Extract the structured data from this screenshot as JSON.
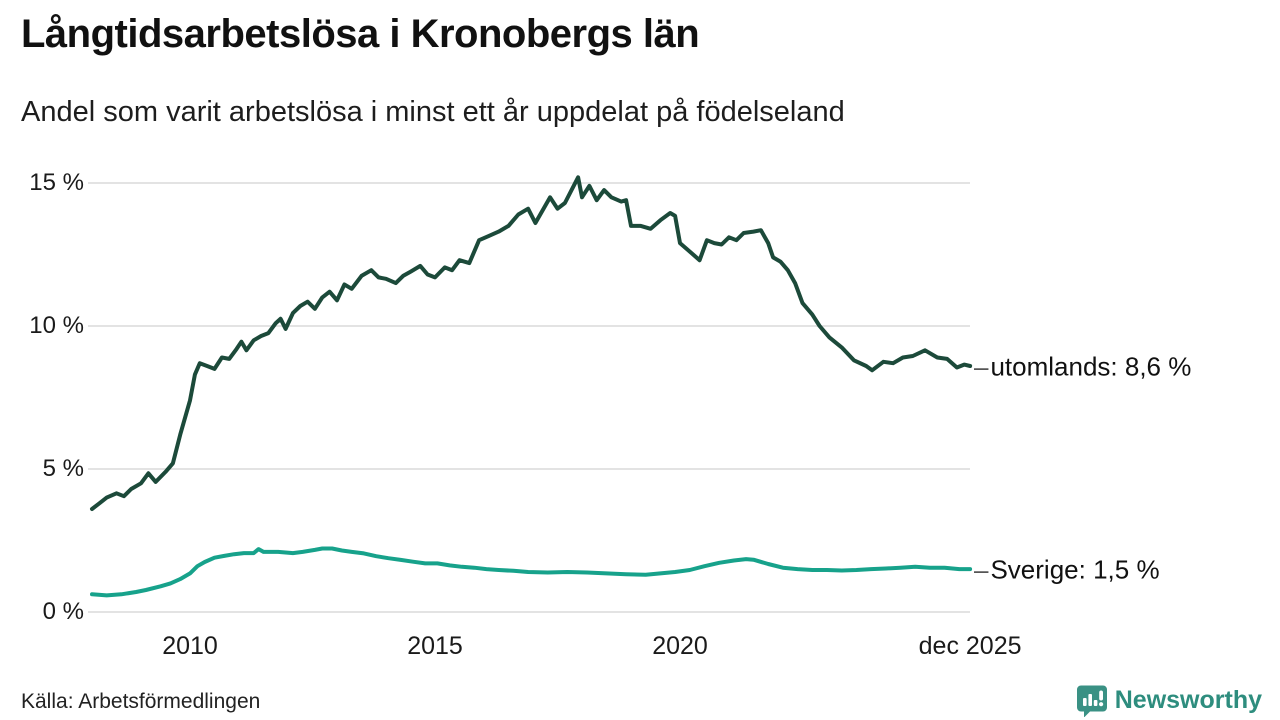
{
  "header": {
    "title": "Långtidsarbetslösa i Kronobergs län",
    "subtitle": "Andel som varit arbetslösa i minst ett år uppdelat på födelseland"
  },
  "footer": {
    "source": "Källa: Arbetsförmedlingen",
    "brand": "Newsworthy",
    "brand_color": "#2e8d7e"
  },
  "chart_data": {
    "type": "line",
    "title": "Långtidsarbetslösa i Kronobergs län",
    "subtitle": "Andel som varit arbetslösa i minst ett år uppdelat på födelseland",
    "unit": "%",
    "grid": true,
    "legend_position": "right-end-labels",
    "gridline_color": "#e3e3e3",
    "connector": "–",
    "x_axis": {
      "range": [
        2008.0,
        2025.92
      ],
      "ticks": [
        {
          "label": "2010",
          "year": 2010
        },
        {
          "label": "2015",
          "year": 2015
        },
        {
          "label": "2020",
          "year": 2020
        },
        {
          "label": "dec 2025",
          "year": 2025.92
        }
      ]
    },
    "y_axis": {
      "range": [
        0,
        15.5
      ],
      "ticks": [
        {
          "label": "0 %",
          "value": 0
        },
        {
          "label": "5 %",
          "value": 5
        },
        {
          "label": "10 %",
          "value": 10
        },
        {
          "label": "15 %",
          "value": 15
        }
      ]
    },
    "series": [
      {
        "name": "utomlands",
        "label": "utomlands: 8,6 %",
        "end_value": 8.6,
        "color": "#1c4a3a",
        "points": [
          [
            2008.0,
            3.6
          ],
          [
            2008.15,
            3.8
          ],
          [
            2008.3,
            4.0
          ],
          [
            2008.5,
            4.15
          ],
          [
            2008.65,
            4.05
          ],
          [
            2008.8,
            4.3
          ],
          [
            2009.0,
            4.5
          ],
          [
            2009.15,
            4.85
          ],
          [
            2009.3,
            4.55
          ],
          [
            2009.5,
            4.9
          ],
          [
            2009.65,
            5.2
          ],
          [
            2009.8,
            6.2
          ],
          [
            2010.0,
            7.4
          ],
          [
            2010.1,
            8.3
          ],
          [
            2010.2,
            8.7
          ],
          [
            2010.35,
            8.6
          ],
          [
            2010.5,
            8.5
          ],
          [
            2010.65,
            8.9
          ],
          [
            2010.8,
            8.85
          ],
          [
            2010.95,
            9.2
          ],
          [
            2011.05,
            9.45
          ],
          [
            2011.15,
            9.15
          ],
          [
            2011.3,
            9.5
          ],
          [
            2011.45,
            9.65
          ],
          [
            2011.6,
            9.75
          ],
          [
            2011.75,
            10.1
          ],
          [
            2011.85,
            10.25
          ],
          [
            2011.95,
            9.9
          ],
          [
            2012.1,
            10.45
          ],
          [
            2012.25,
            10.7
          ],
          [
            2012.4,
            10.85
          ],
          [
            2012.55,
            10.6
          ],
          [
            2012.7,
            11.0
          ],
          [
            2012.85,
            11.2
          ],
          [
            2013.0,
            10.9
          ],
          [
            2013.15,
            11.45
          ],
          [
            2013.3,
            11.3
          ],
          [
            2013.5,
            11.75
          ],
          [
            2013.7,
            11.95
          ],
          [
            2013.85,
            11.7
          ],
          [
            2014.0,
            11.65
          ],
          [
            2014.2,
            11.5
          ],
          [
            2014.35,
            11.75
          ],
          [
            2014.5,
            11.9
          ],
          [
            2014.7,
            12.1
          ],
          [
            2014.85,
            11.8
          ],
          [
            2015.0,
            11.7
          ],
          [
            2015.2,
            12.05
          ],
          [
            2015.35,
            11.95
          ],
          [
            2015.5,
            12.3
          ],
          [
            2015.7,
            12.2
          ],
          [
            2015.9,
            13.0
          ],
          [
            2016.1,
            13.15
          ],
          [
            2016.3,
            13.3
          ],
          [
            2016.5,
            13.5
          ],
          [
            2016.7,
            13.9
          ],
          [
            2016.9,
            14.1
          ],
          [
            2017.05,
            13.6
          ],
          [
            2017.35,
            14.5
          ],
          [
            2017.5,
            14.1
          ],
          [
            2017.65,
            14.3
          ],
          [
            2017.92,
            15.2
          ],
          [
            2018.0,
            14.5
          ],
          [
            2018.15,
            14.9
          ],
          [
            2018.3,
            14.4
          ],
          [
            2018.45,
            14.75
          ],
          [
            2018.6,
            14.5
          ],
          [
            2018.8,
            14.35
          ],
          [
            2018.9,
            14.4
          ],
          [
            2019.0,
            13.5
          ],
          [
            2019.2,
            13.5
          ],
          [
            2019.4,
            13.4
          ],
          [
            2019.6,
            13.7
          ],
          [
            2019.8,
            13.95
          ],
          [
            2019.9,
            13.85
          ],
          [
            2020.0,
            12.9
          ],
          [
            2020.2,
            12.6
          ],
          [
            2020.4,
            12.3
          ],
          [
            2020.55,
            13.0
          ],
          [
            2020.7,
            12.9
          ],
          [
            2020.85,
            12.85
          ],
          [
            2021.0,
            13.1
          ],
          [
            2021.15,
            13.0
          ],
          [
            2021.3,
            13.25
          ],
          [
            2021.5,
            13.3
          ],
          [
            2021.65,
            13.35
          ],
          [
            2021.8,
            12.9
          ],
          [
            2021.9,
            12.4
          ],
          [
            2022.05,
            12.25
          ],
          [
            2022.2,
            11.95
          ],
          [
            2022.35,
            11.5
          ],
          [
            2022.5,
            10.8
          ],
          [
            2022.7,
            10.4
          ],
          [
            2022.85,
            10.0
          ],
          [
            2023.05,
            9.6
          ],
          [
            2023.3,
            9.25
          ],
          [
            2023.55,
            8.8
          ],
          [
            2023.8,
            8.6
          ],
          [
            2023.92,
            8.45
          ],
          [
            2024.15,
            8.75
          ],
          [
            2024.35,
            8.7
          ],
          [
            2024.55,
            8.9
          ],
          [
            2024.75,
            8.95
          ],
          [
            2025.0,
            9.15
          ],
          [
            2025.25,
            8.9
          ],
          [
            2025.45,
            8.85
          ],
          [
            2025.65,
            8.55
          ],
          [
            2025.8,
            8.65
          ],
          [
            2025.92,
            8.6
          ]
        ]
      },
      {
        "name": "Sverige",
        "label": "Sverige: 1,5 %",
        "end_value": 1.5,
        "color": "#17a28b",
        "points": [
          [
            2008.0,
            0.62
          ],
          [
            2008.3,
            0.58
          ],
          [
            2008.6,
            0.62
          ],
          [
            2008.9,
            0.7
          ],
          [
            2009.1,
            0.77
          ],
          [
            2009.4,
            0.9
          ],
          [
            2009.6,
            1.0
          ],
          [
            2009.8,
            1.15
          ],
          [
            2010.0,
            1.35
          ],
          [
            2010.15,
            1.6
          ],
          [
            2010.3,
            1.75
          ],
          [
            2010.5,
            1.9
          ],
          [
            2010.7,
            1.96
          ],
          [
            2010.9,
            2.02
          ],
          [
            2011.1,
            2.06
          ],
          [
            2011.3,
            2.06
          ],
          [
            2011.4,
            2.2
          ],
          [
            2011.5,
            2.1
          ],
          [
            2011.8,
            2.1
          ],
          [
            2012.1,
            2.06
          ],
          [
            2012.3,
            2.1
          ],
          [
            2012.55,
            2.17
          ],
          [
            2012.7,
            2.22
          ],
          [
            2012.9,
            2.22
          ],
          [
            2013.1,
            2.15
          ],
          [
            2013.3,
            2.1
          ],
          [
            2013.55,
            2.05
          ],
          [
            2013.8,
            1.95
          ],
          [
            2014.05,
            1.88
          ],
          [
            2014.3,
            1.82
          ],
          [
            2014.55,
            1.76
          ],
          [
            2014.8,
            1.7
          ],
          [
            2015.05,
            1.7
          ],
          [
            2015.3,
            1.63
          ],
          [
            2015.55,
            1.58
          ],
          [
            2015.8,
            1.55
          ],
          [
            2016.05,
            1.5
          ],
          [
            2016.3,
            1.47
          ],
          [
            2016.6,
            1.44
          ],
          [
            2016.9,
            1.4
          ],
          [
            2017.3,
            1.38
          ],
          [
            2017.7,
            1.4
          ],
          [
            2018.1,
            1.38
          ],
          [
            2018.5,
            1.35
          ],
          [
            2018.9,
            1.32
          ],
          [
            2019.3,
            1.3
          ],
          [
            2019.6,
            1.35
          ],
          [
            2019.9,
            1.4
          ],
          [
            2020.2,
            1.47
          ],
          [
            2020.5,
            1.6
          ],
          [
            2020.8,
            1.72
          ],
          [
            2021.1,
            1.8
          ],
          [
            2021.35,
            1.85
          ],
          [
            2021.5,
            1.83
          ],
          [
            2021.8,
            1.68
          ],
          [
            2022.1,
            1.55
          ],
          [
            2022.4,
            1.5
          ],
          [
            2022.7,
            1.47
          ],
          [
            2023.0,
            1.47
          ],
          [
            2023.3,
            1.45
          ],
          [
            2023.6,
            1.47
          ],
          [
            2023.9,
            1.5
          ],
          [
            2024.2,
            1.52
          ],
          [
            2024.5,
            1.55
          ],
          [
            2024.8,
            1.58
          ],
          [
            2025.1,
            1.55
          ],
          [
            2025.4,
            1.55
          ],
          [
            2025.7,
            1.5
          ],
          [
            2025.92,
            1.5
          ]
        ]
      }
    ]
  }
}
